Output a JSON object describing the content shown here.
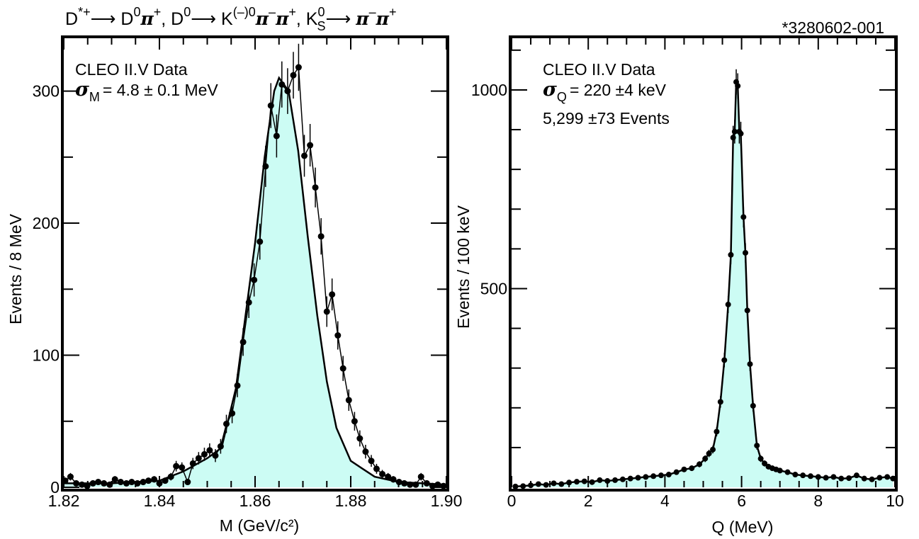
{
  "figure_id": "*3280602-001",
  "title": {
    "parts": [
      "D",
      "*+",
      "⟶ D",
      "0",
      "π",
      "+",
      ", D",
      "0",
      "⟶ K",
      "(–)0",
      "π",
      "–",
      "π",
      "+",
      ", K",
      "0",
      "S",
      "⟶ ",
      "π",
      "–",
      "π",
      "+"
    ]
  },
  "chart_data": [
    {
      "type": "line",
      "xlabel": "M (GeV/c²)",
      "ylabel": "Events / 8 MeV",
      "xlim": [
        1.82,
        1.9
      ],
      "ylim": [
        0,
        340
      ],
      "x_ticks": [
        "1.82",
        "1.84",
        "1.86",
        "1.88",
        "1.90"
      ],
      "x_tick_values": [
        1.82,
        1.84,
        1.86,
        1.88,
        1.9
      ],
      "y_ticks": [
        "0",
        "100",
        "200",
        "300"
      ],
      "y_tick_values": [
        0,
        100,
        200,
        300
      ],
      "annotations": [
        "CLEO II.V Data",
        "= 4.8 ± 0.1 MeV"
      ],
      "sigma_symbol": "σ",
      "sigma_sub": "M",
      "fill_color": "#ccfcf4",
      "points": [
        [
          1.8203,
          5
        ],
        [
          1.8214,
          8
        ],
        [
          1.8226,
          3
        ],
        [
          1.8238,
          2
        ],
        [
          1.8249,
          1
        ],
        [
          1.8261,
          3
        ],
        [
          1.8272,
          4
        ],
        [
          1.8284,
          3
        ],
        [
          1.8296,
          2
        ],
        [
          1.8307,
          6
        ],
        [
          1.8319,
          4
        ],
        [
          1.8331,
          3
        ],
        [
          1.8342,
          4
        ],
        [
          1.8354,
          3
        ],
        [
          1.8366,
          4
        ],
        [
          1.8377,
          5
        ],
        [
          1.8389,
          6
        ],
        [
          1.84,
          3
        ],
        [
          1.8412,
          5
        ],
        [
          1.8424,
          8
        ],
        [
          1.8435,
          16
        ],
        [
          1.8447,
          15
        ],
        [
          1.8459,
          4
        ],
        [
          1.847,
          18
        ],
        [
          1.8482,
          22
        ],
        [
          1.8494,
          25
        ],
        [
          1.8505,
          28
        ],
        [
          1.8517,
          24
        ],
        [
          1.8528,
          31
        ],
        [
          1.854,
          48
        ],
        [
          1.8552,
          56
        ],
        [
          1.8563,
          77
        ],
        [
          1.8575,
          110
        ],
        [
          1.8587,
          140
        ],
        [
          1.8598,
          157
        ],
        [
          1.861,
          186
        ],
        [
          1.8622,
          243
        ],
        [
          1.8633,
          289
        ],
        [
          1.8645,
          266
        ],
        [
          1.8656,
          305
        ],
        [
          1.8668,
          300
        ],
        [
          1.868,
          312
        ],
        [
          1.8691,
          318
        ],
        [
          1.8703,
          251
        ],
        [
          1.8715,
          259
        ],
        [
          1.8726,
          227
        ],
        [
          1.8738,
          190
        ],
        [
          1.875,
          133
        ],
        [
          1.8761,
          146
        ],
        [
          1.8773,
          115
        ],
        [
          1.8784,
          90
        ],
        [
          1.8796,
          66
        ],
        [
          1.8808,
          50
        ],
        [
          1.8819,
          37
        ],
        [
          1.8831,
          27
        ],
        [
          1.8843,
          20
        ],
        [
          1.8854,
          14
        ],
        [
          1.8866,
          10
        ],
        [
          1.8878,
          8
        ],
        [
          1.8889,
          6
        ],
        [
          1.8901,
          4
        ],
        [
          1.8912,
          3
        ],
        [
          1.8924,
          2
        ],
        [
          1.8936,
          2
        ],
        [
          1.8947,
          8
        ],
        [
          1.8959,
          3
        ],
        [
          1.8971,
          1
        ],
        [
          1.8982,
          2
        ],
        [
          1.8994,
          1
        ]
      ],
      "fit": [
        [
          1.82,
          3
        ],
        [
          1.83,
          3
        ],
        [
          1.84,
          5
        ],
        [
          1.845,
          12
        ],
        [
          1.85,
          22
        ],
        [
          1.853,
          30
        ],
        [
          1.856,
          75
        ],
        [
          1.858,
          130
        ],
        [
          1.86,
          185
        ],
        [
          1.862,
          250
        ],
        [
          1.864,
          300
        ],
        [
          1.865,
          310
        ],
        [
          1.867,
          300
        ],
        [
          1.869,
          255
        ],
        [
          1.871,
          190
        ],
        [
          1.873,
          130
        ],
        [
          1.875,
          80
        ],
        [
          1.877,
          45
        ],
        [
          1.88,
          20
        ],
        [
          1.885,
          8
        ],
        [
          1.89,
          4
        ],
        [
          1.9,
          2
        ]
      ]
    },
    {
      "type": "line",
      "xlabel": "Q (MeV)",
      "ylabel": "Events / 100 keV",
      "xlim": [
        0,
        10
      ],
      "ylim": [
        0,
        1130
      ],
      "x_ticks": [
        "0",
        "2",
        "4",
        "6",
        "8",
        "10"
      ],
      "x_tick_values": [
        0,
        2,
        4,
        6,
        8,
        10
      ],
      "y_ticks": [
        "500",
        "1000"
      ],
      "y_tick_values": [
        500,
        1000
      ],
      "annotations": [
        "CLEO II.V Data",
        "= 220 ±4 keV",
        "5,299 ±73 Events"
      ],
      "sigma_symbol": "σ",
      "sigma_sub": "Q",
      "fill_color": "#ccfcf4",
      "points": [
        [
          0.1,
          2
        ],
        [
          0.3,
          3
        ],
        [
          0.5,
          5
        ],
        [
          0.7,
          8
        ],
        [
          0.9,
          6
        ],
        [
          1.1,
          10
        ],
        [
          1.3,
          8
        ],
        [
          1.5,
          12
        ],
        [
          1.7,
          14
        ],
        [
          1.9,
          15
        ],
        [
          2.1,
          13
        ],
        [
          2.3,
          18
        ],
        [
          2.5,
          16
        ],
        [
          2.7,
          18
        ],
        [
          2.9,
          20
        ],
        [
          3.1,
          22
        ],
        [
          3.3,
          24
        ],
        [
          3.5,
          26
        ],
        [
          3.7,
          28
        ],
        [
          3.9,
          30
        ],
        [
          4.1,
          32
        ],
        [
          4.3,
          38
        ],
        [
          4.5,
          45
        ],
        [
          4.7,
          48
        ],
        [
          4.9,
          58
        ],
        [
          5.05,
          72
        ],
        [
          5.15,
          85
        ],
        [
          5.25,
          95
        ],
        [
          5.35,
          140
        ],
        [
          5.45,
          215
        ],
        [
          5.55,
          320
        ],
        [
          5.65,
          460
        ],
        [
          5.72,
          585
        ],
        [
          5.78,
          880
        ],
        [
          5.82,
          895
        ],
        [
          5.86,
          1020
        ],
        [
          5.9,
          1010
        ],
        [
          5.94,
          895
        ],
        [
          5.98,
          890
        ],
        [
          6.05,
          680
        ],
        [
          6.1,
          590
        ],
        [
          6.15,
          445
        ],
        [
          6.22,
          310
        ],
        [
          6.3,
          205
        ],
        [
          6.4,
          105
        ],
        [
          6.5,
          72
        ],
        [
          6.6,
          60
        ],
        [
          6.7,
          52
        ],
        [
          6.8,
          48
        ],
        [
          6.9,
          45
        ],
        [
          7.0,
          42
        ],
        [
          7.2,
          38
        ],
        [
          7.4,
          32
        ],
        [
          7.6,
          30
        ],
        [
          7.8,
          28
        ],
        [
          8.0,
          26
        ],
        [
          8.2,
          24
        ],
        [
          8.4,
          26
        ],
        [
          8.6,
          22
        ],
        [
          8.8,
          23
        ],
        [
          9.0,
          30
        ],
        [
          9.2,
          22
        ],
        [
          9.4,
          20
        ],
        [
          9.6,
          24
        ],
        [
          9.8,
          26
        ],
        [
          9.95,
          22
        ]
      ]
    }
  ]
}
